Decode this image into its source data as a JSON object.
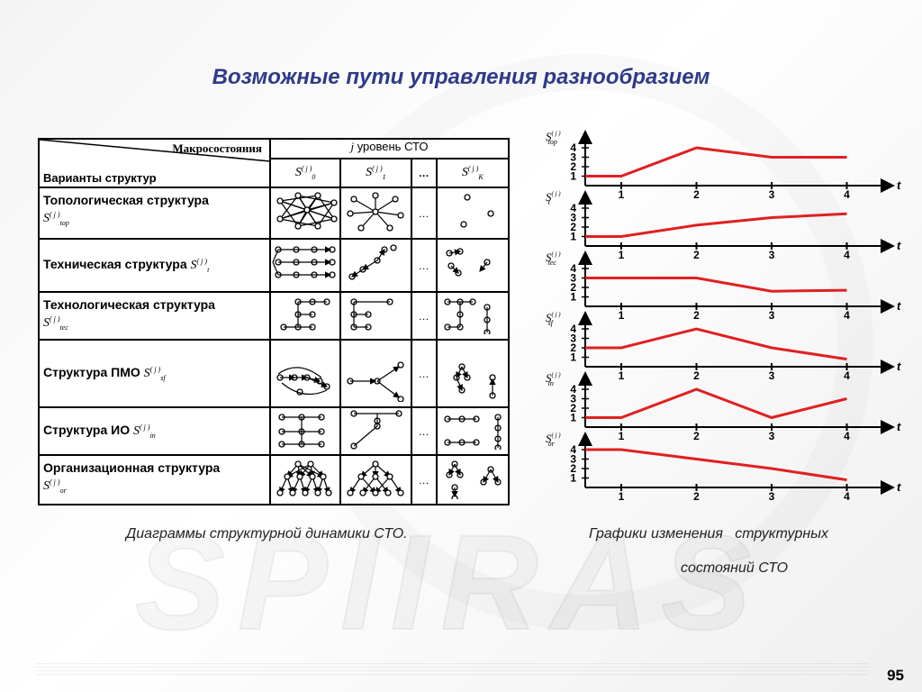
{
  "title": "Возможные пути управления разнообразием",
  "page_number": "95",
  "watermark": "SPIIRAS",
  "table": {
    "header_macro": "Макросостояния",
    "header_variants": "Варианты структур",
    "header_level_j": "j",
    "header_level_text": "уровень СТО",
    "states": [
      {
        "base": "S",
        "sub": "0",
        "sup": "( j )"
      },
      {
        "base": "S",
        "sub": "1",
        "sup": "( j )"
      },
      {
        "base": "…",
        "sub": "",
        "sup": ""
      },
      {
        "base": "S",
        "sub": "K",
        "sup": "( j )"
      }
    ],
    "rows": [
      {
        "label": "Топологическая структура",
        "sym_sub": "top"
      },
      {
        "label": "Техническая структура",
        "sym_sub": "t"
      },
      {
        "label": "Технологическая структура",
        "sym_sub": "tec"
      },
      {
        "label": "Структура ПМО",
        "sym_sub": "sf"
      },
      {
        "label": "Структура ИО",
        "sym_sub": "in"
      },
      {
        "label": "Организационная структура",
        "sym_sub": "or"
      }
    ],
    "symbol_base": "S",
    "symbol_sup": "( j )",
    "ellipsis": "…"
  },
  "caption_left": "Диаграммы структурной динамики СТО.",
  "caption_right_line1": "Графики изменения   структурных",
  "caption_right_line2": "состояний СТО",
  "graph_axis_label": "t",
  "graph_x_ticks": [
    "1",
    "2",
    "3",
    "4"
  ],
  "graph_y_ticks": [
    "1",
    "2",
    "3",
    "4"
  ],
  "line_color": "#e02020",
  "chart_data": [
    {
      "type": "line",
      "symbol_sub": "top",
      "x": [
        0,
        1,
        2,
        3,
        4
      ],
      "values": [
        1,
        1,
        4,
        3,
        3
      ],
      "ylim": [
        0,
        4.5
      ]
    },
    {
      "type": "line",
      "symbol_sub": "t",
      "x": [
        0,
        1,
        2,
        3,
        4
      ],
      "values": [
        1,
        1,
        2.2,
        3,
        3.4
      ],
      "ylim": [
        0,
        4.5
      ]
    },
    {
      "type": "line",
      "symbol_sub": "tec",
      "x": [
        0,
        1,
        2,
        3,
        4
      ],
      "values": [
        3,
        3,
        3,
        1.6,
        1.7
      ],
      "ylim": [
        0,
        4.5
      ]
    },
    {
      "type": "line",
      "symbol_sub": "sf",
      "x": [
        0,
        1,
        2,
        3,
        4
      ],
      "values": [
        2,
        2,
        4,
        2,
        0.8
      ],
      "ylim": [
        0,
        4.5
      ]
    },
    {
      "type": "line",
      "symbol_sub": "in",
      "x": [
        0,
        1,
        2,
        3,
        4
      ],
      "values": [
        1,
        1,
        4,
        1,
        3
      ],
      "ylim": [
        0,
        4.5
      ]
    },
    {
      "type": "line",
      "symbol_sub": "or",
      "x": [
        0,
        1,
        2,
        3,
        4
      ],
      "values": [
        4,
        4,
        3,
        2,
        0.8
      ],
      "ylim": [
        0,
        4.5
      ]
    }
  ]
}
